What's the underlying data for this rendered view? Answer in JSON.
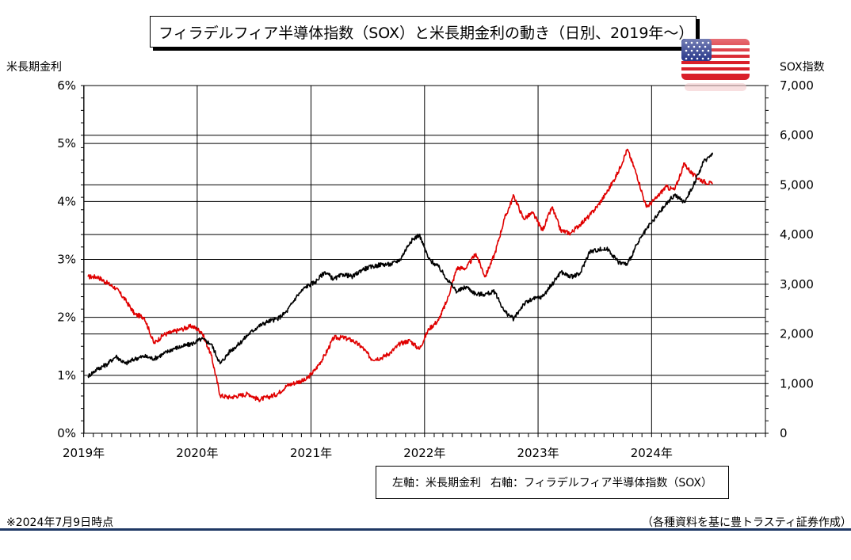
{
  "title": "フィラデルフィア半導体指数（SOX）と米長期金利の動き（日別、2019年～）",
  "left_axis_title": "米長期金利",
  "right_axis_title": "SOX指数",
  "legend": {
    "left_label": "左軸：米長期金利",
    "right_label": "右軸：フィラデルフィア半導体指数（SOX）"
  },
  "footnote_left": "※2024年7月9日時点",
  "footnote_right": "（各種資料を基に豊トラスティ証券作成）",
  "flag_icon": "us-flag-icon",
  "colors": {
    "yield_line": "#e00000",
    "sox_line": "#000000",
    "rule": "#1f3864"
  },
  "chart_data": {
    "type": "line",
    "x_range": [
      "2019-01-02",
      "2025-01-01"
    ],
    "x_ticks": [
      "2019年",
      "2020年",
      "2021年",
      "2022年",
      "2023年",
      "2024年"
    ],
    "y_left": {
      "range": [
        0,
        6
      ],
      "ticks": [
        "0%",
        "1%",
        "2%",
        "3%",
        "4%",
        "5%",
        "6%"
      ]
    },
    "y_right": {
      "range": [
        0,
        7000
      ],
      "ticks": [
        "0",
        "1,000",
        "2,000",
        "3,000",
        "4,000",
        "5,000",
        "6,000",
        "7,000"
      ]
    },
    "grid": true,
    "series": [
      {
        "name": "米長期金利",
        "axis": "left",
        "unit": "%",
        "x": [
          "2019-01",
          "2019-02",
          "2019-03",
          "2019-04",
          "2019-05",
          "2019-06",
          "2019-07",
          "2019-08",
          "2019-09",
          "2019-10",
          "2019-11",
          "2019-12",
          "2020-01",
          "2020-02",
          "2020-03",
          "2020-04",
          "2020-05",
          "2020-06",
          "2020-07",
          "2020-08",
          "2020-09",
          "2020-10",
          "2020-11",
          "2020-12",
          "2021-01",
          "2021-02",
          "2021-03",
          "2021-04",
          "2021-05",
          "2021-06",
          "2021-07",
          "2021-08",
          "2021-09",
          "2021-10",
          "2021-11",
          "2021-12",
          "2022-01",
          "2022-02",
          "2022-03",
          "2022-04",
          "2022-05",
          "2022-06",
          "2022-07",
          "2022-08",
          "2022-09",
          "2022-10",
          "2022-11",
          "2022-12",
          "2023-01",
          "2023-02",
          "2023-03",
          "2023-04",
          "2023-05",
          "2023-06",
          "2023-07",
          "2023-08",
          "2023-09",
          "2023-10",
          "2023-11",
          "2023-12",
          "2024-01",
          "2024-02",
          "2024-03",
          "2024-04",
          "2024-05",
          "2024-06",
          "2024-07"
        ],
        "y": [
          2.7,
          2.7,
          2.6,
          2.5,
          2.3,
          2.05,
          2.0,
          1.55,
          1.7,
          1.75,
          1.8,
          1.85,
          1.75,
          1.35,
          0.65,
          0.62,
          0.65,
          0.68,
          0.58,
          0.62,
          0.68,
          0.82,
          0.88,
          0.92,
          1.1,
          1.35,
          1.65,
          1.65,
          1.6,
          1.48,
          1.28,
          1.3,
          1.4,
          1.55,
          1.6,
          1.45,
          1.8,
          1.95,
          2.3,
          2.85,
          2.85,
          3.1,
          2.7,
          3.1,
          3.7,
          4.1,
          3.7,
          3.8,
          3.5,
          3.9,
          3.5,
          3.45,
          3.6,
          3.75,
          3.95,
          4.2,
          4.5,
          4.9,
          4.45,
          3.9,
          4.05,
          4.25,
          4.2,
          4.65,
          4.45,
          4.35,
          4.3
        ]
      },
      {
        "name": "フィラデルフィア半導体指数（SOX）",
        "axis": "right",
        "unit": "pt",
        "x": [
          "2019-01",
          "2019-02",
          "2019-03",
          "2019-04",
          "2019-05",
          "2019-06",
          "2019-07",
          "2019-08",
          "2019-09",
          "2019-10",
          "2019-11",
          "2019-12",
          "2020-01",
          "2020-02",
          "2020-03",
          "2020-04",
          "2020-05",
          "2020-06",
          "2020-07",
          "2020-08",
          "2020-09",
          "2020-10",
          "2020-11",
          "2020-12",
          "2021-01",
          "2021-02",
          "2021-03",
          "2021-04",
          "2021-05",
          "2021-06",
          "2021-07",
          "2021-08",
          "2021-09",
          "2021-10",
          "2021-11",
          "2021-12",
          "2022-01",
          "2022-02",
          "2022-03",
          "2022-04",
          "2022-05",
          "2022-06",
          "2022-07",
          "2022-08",
          "2022-09",
          "2022-10",
          "2022-11",
          "2022-12",
          "2023-01",
          "2023-02",
          "2023-03",
          "2023-04",
          "2023-05",
          "2023-06",
          "2023-07",
          "2023-08",
          "2023-09",
          "2023-10",
          "2023-11",
          "2023-12",
          "2024-01",
          "2024-02",
          "2024-03",
          "2024-04",
          "2024-05",
          "2024-06",
          "2024-07"
        ],
        "y": [
          1150,
          1300,
          1380,
          1550,
          1400,
          1500,
          1550,
          1500,
          1600,
          1700,
          1750,
          1800,
          1900,
          1800,
          1400,
          1650,
          1800,
          2000,
          2150,
          2250,
          2300,
          2450,
          2750,
          2950,
          3050,
          3250,
          3100,
          3200,
          3150,
          3300,
          3350,
          3400,
          3400,
          3500,
          3850,
          4000,
          3500,
          3350,
          3100,
          2850,
          2950,
          2800,
          2800,
          2850,
          2450,
          2300,
          2600,
          2700,
          2750,
          3000,
          3250,
          3150,
          3200,
          3650,
          3700,
          3700,
          3450,
          3400,
          3800,
          4100,
          4350,
          4600,
          4800,
          4650,
          5000,
          5450,
          5650
        ]
      }
    ]
  }
}
